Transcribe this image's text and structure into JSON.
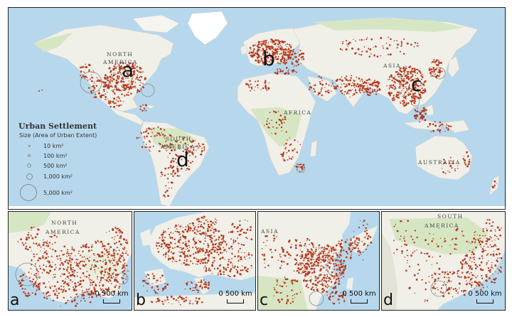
{
  "colors": {
    "ocean": "#b7d8ec",
    "land": "#f0efe8",
    "vegetation": "#d6e6c3",
    "ice": "#ffffff",
    "settlement": "#b4391d",
    "outline": "#222222"
  },
  "main_map": {
    "continent_labels": {
      "north_america_1": "NORTH",
      "north_america_2": "AMERICA",
      "asia": "ASIA",
      "africa": "AFRICA",
      "south_america_1": "SOUTH",
      "south_america_2": "AMERICA",
      "australia": "AUSTRALIA"
    },
    "region_letters": [
      "a",
      "b",
      "c",
      "d"
    ]
  },
  "legend": {
    "title": "Urban Settlement",
    "subtitle": "Size (Area of Urban Extent)",
    "items": [
      {
        "label": "10 km²"
      },
      {
        "label": "100 km²"
      },
      {
        "label": "500 km²"
      },
      {
        "label": "1,000 km²"
      },
      {
        "label": "5,000 km²"
      }
    ]
  },
  "insets": [
    {
      "letter": "a",
      "label_1": "NORTH",
      "label_2": "AMERICA",
      "scale": "0 500 km"
    },
    {
      "letter": "b",
      "scale": "0 500 km"
    },
    {
      "letter": "c",
      "label_1": "ASIA",
      "scale": "0 500 km"
    },
    {
      "letter": "d",
      "label_1": "SOUTH",
      "label_2": "AMERICA",
      "scale": "0 500 km"
    }
  ]
}
